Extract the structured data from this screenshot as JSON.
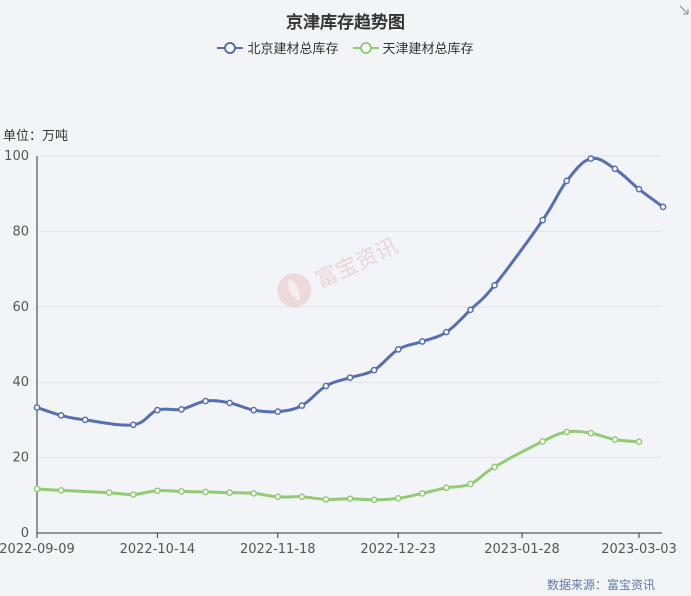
{
  "chart_data": {
    "type": "line",
    "title": "京津库存趋势图",
    "unit_label": "单位：万吨",
    "source": "数据来源：富宝资讯",
    "watermark": "富宝资讯",
    "ylim": [
      0,
      100
    ],
    "y_ticks": [
      "0",
      "20",
      "40",
      "60",
      "80",
      "100"
    ],
    "xlim": [
      "2022-09-09",
      "2023-03-03"
    ],
    "x_ticks": [
      "2022-09-09",
      "2022-10-14",
      "2022-11-18",
      "2022-12-23",
      "2023-01-28",
      "2023-03-03"
    ],
    "grid": true,
    "legend_position": "top-center",
    "series": [
      {
        "name": "北京建材总库存",
        "color": "#5470b5",
        "points": [
          [
            "2022-09-09",
            33.3
          ],
          [
            "2022-09-16",
            31.2
          ],
          [
            "2022-09-23",
            30.0
          ],
          [
            "2022-10-07",
            28.7
          ],
          [
            "2022-10-14",
            32.6
          ],
          [
            "2022-10-21",
            32.8
          ],
          [
            "2022-10-28",
            35.0
          ],
          [
            "2022-11-04",
            34.5
          ],
          [
            "2022-11-11",
            32.6
          ],
          [
            "2022-11-18",
            32.2
          ],
          [
            "2022-11-25",
            33.8
          ],
          [
            "2022-12-02",
            39.0
          ],
          [
            "2022-12-09",
            41.2
          ],
          [
            "2022-12-16",
            43.2
          ],
          [
            "2022-12-23",
            48.7
          ],
          [
            "2022-12-30",
            50.8
          ],
          [
            "2023-01-06",
            53.3
          ],
          [
            "2023-01-13",
            59.2
          ],
          [
            "2023-01-20",
            65.7
          ],
          [
            "2023-02-03",
            83.0
          ],
          [
            "2023-02-10",
            93.4
          ],
          [
            "2023-02-17",
            99.3
          ],
          [
            "2023-02-24",
            96.6
          ],
          [
            "2023-03-03",
            91.2
          ],
          [
            "2023-03-10",
            86.5
          ]
        ]
      },
      {
        "name": "天津建材总库存",
        "color": "#91cc75",
        "points": [
          [
            "2022-09-09",
            11.7
          ],
          [
            "2022-09-16",
            11.3
          ],
          [
            "2022-09-30",
            10.7
          ],
          [
            "2022-10-07",
            10.2
          ],
          [
            "2022-10-14",
            11.2
          ],
          [
            "2022-10-21",
            11.0
          ],
          [
            "2022-10-28",
            10.9
          ],
          [
            "2022-11-04",
            10.7
          ],
          [
            "2022-11-11",
            10.5
          ],
          [
            "2022-11-18",
            9.6
          ],
          [
            "2022-11-25",
            9.6
          ],
          [
            "2022-12-02",
            8.9
          ],
          [
            "2022-12-09",
            9.1
          ],
          [
            "2022-12-16",
            8.8
          ],
          [
            "2022-12-23",
            9.2
          ],
          [
            "2022-12-30",
            10.5
          ],
          [
            "2023-01-06",
            12.0
          ],
          [
            "2023-01-13",
            13.0
          ],
          [
            "2023-01-20",
            17.5
          ],
          [
            "2023-02-03",
            24.3
          ],
          [
            "2023-02-10",
            26.8
          ],
          [
            "2023-02-17",
            26.5
          ],
          [
            "2023-02-24",
            24.8
          ],
          [
            "2023-03-03",
            24.2
          ]
        ]
      }
    ]
  }
}
